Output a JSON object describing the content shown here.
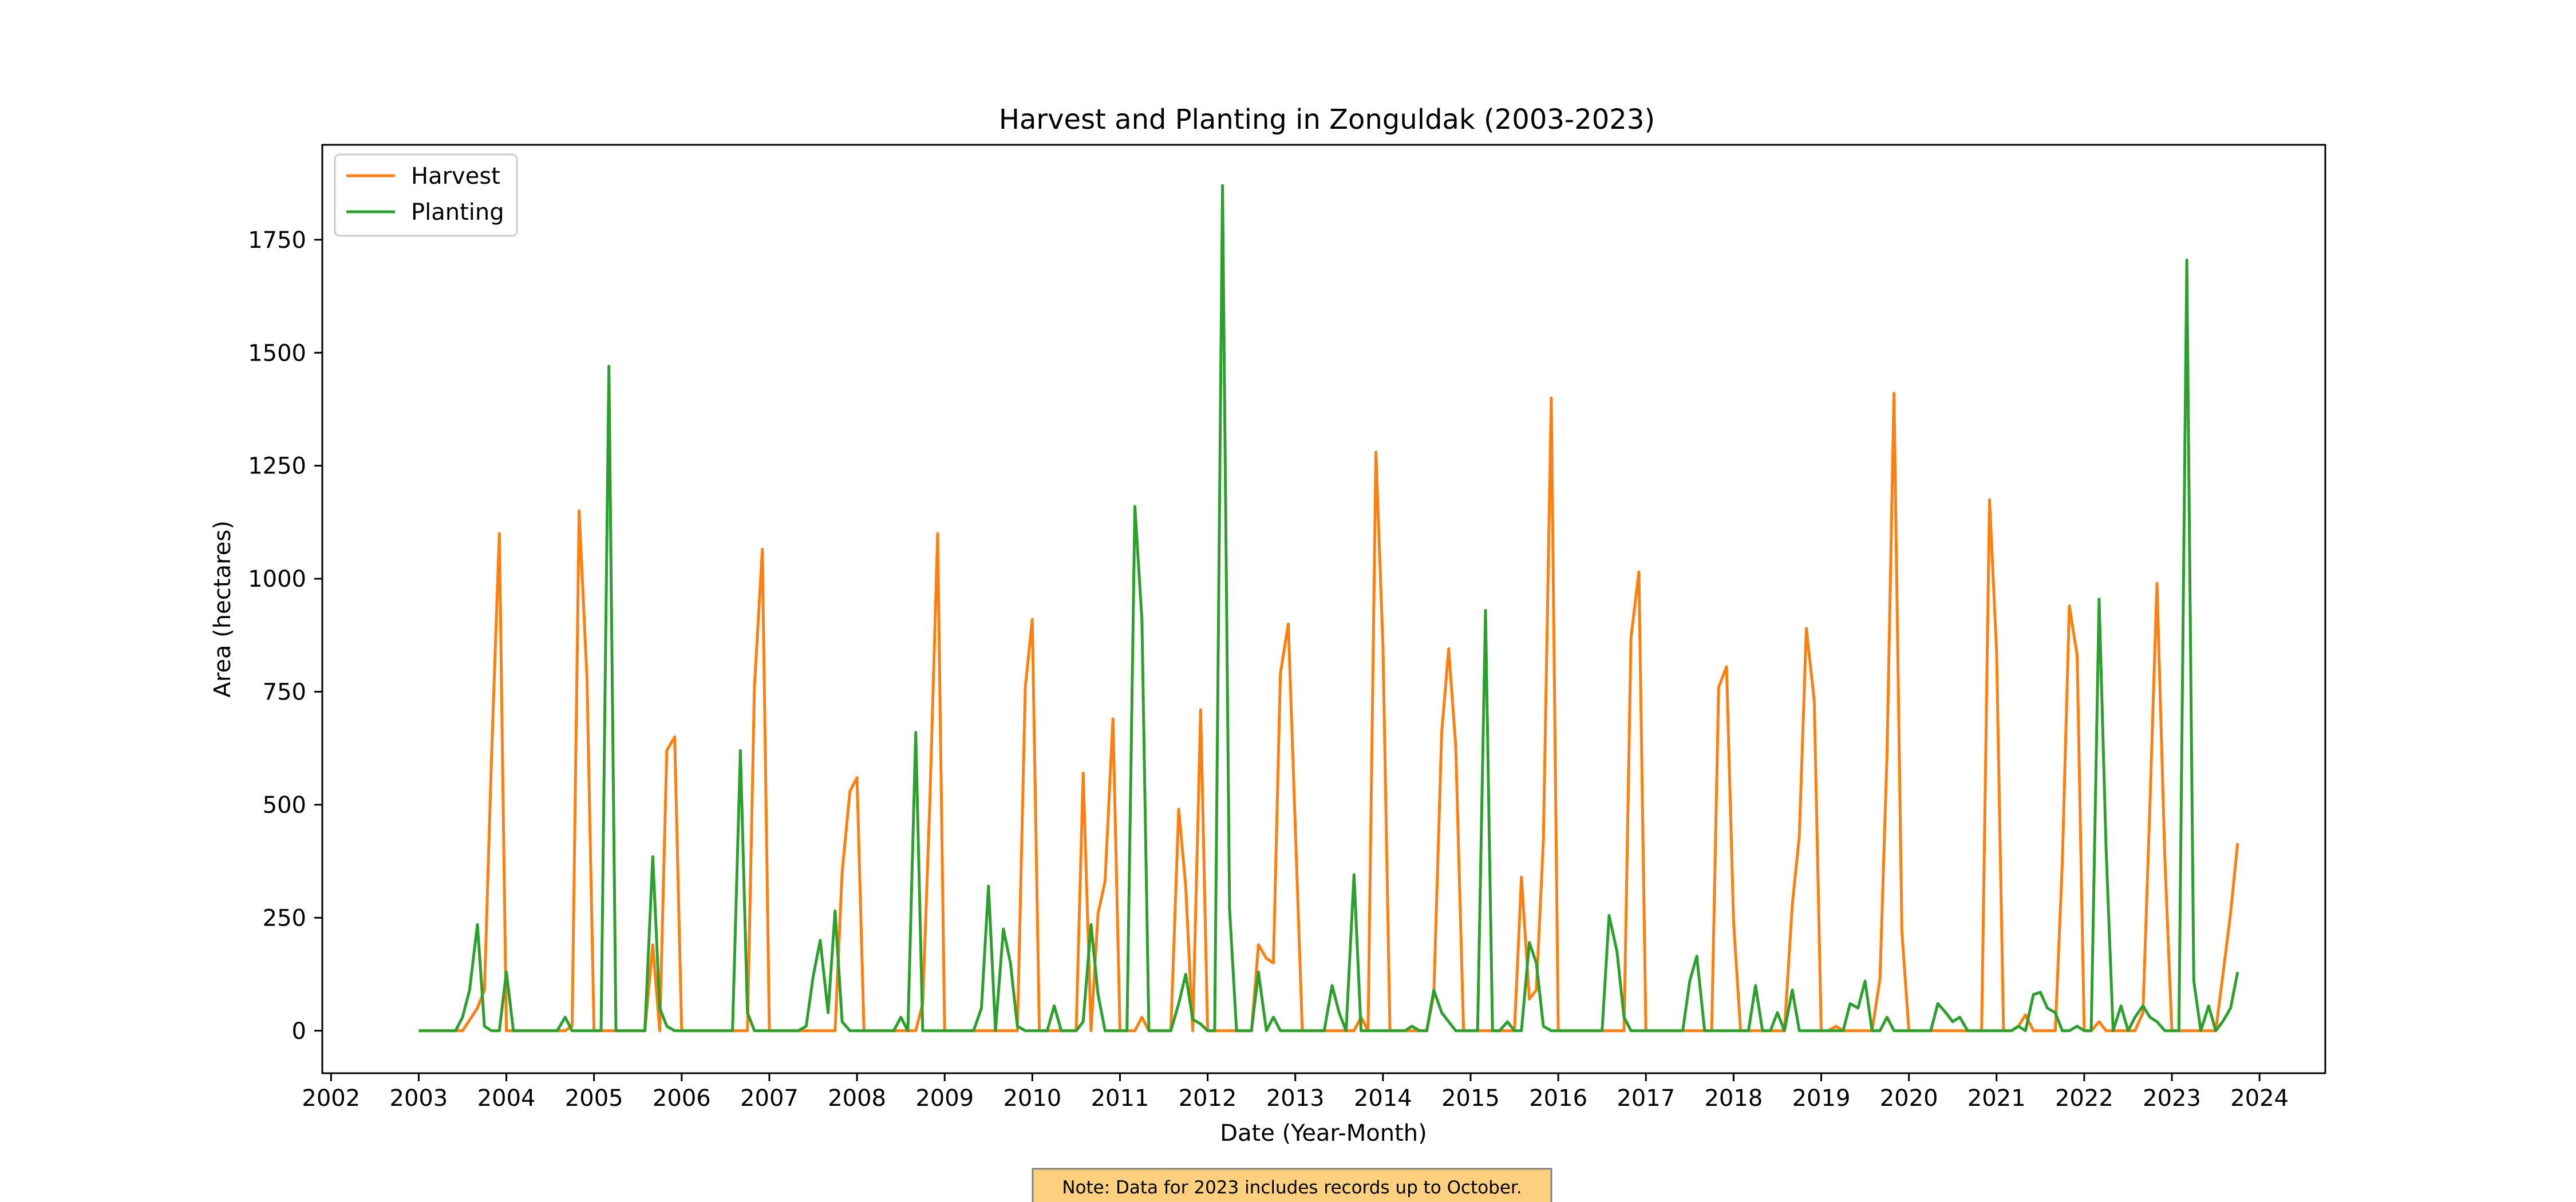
{
  "chart_data": {
    "type": "line",
    "title": "Harvest and Planting in Zonguldak (2003-2023)",
    "xlabel": "Date (Year-Month)",
    "ylabel": "Area (hectares)",
    "xlim": [
      2001.9,
      2024.75
    ],
    "ylim": [
      -94,
      1960
    ],
    "x_ticks": [
      2002,
      2003,
      2004,
      2005,
      2006,
      2007,
      2008,
      2009,
      2010,
      2011,
      2012,
      2013,
      2014,
      2015,
      2016,
      2017,
      2018,
      2019,
      2020,
      2021,
      2022,
      2023,
      2024
    ],
    "y_ticks": [
      0,
      250,
      500,
      750,
      1000,
      1250,
      1500,
      1750
    ],
    "grid": false,
    "legend_position": "upper left",
    "x_axis_type": "date (fractional year)",
    "series": [
      {
        "name": "Harvest",
        "color": "#ff7f0e",
        "points": [
          [
            2003.0,
            0
          ],
          [
            2003.5,
            0
          ],
          [
            2003.67,
            50
          ],
          [
            2003.75,
            90
          ],
          [
            2003.83,
            600
          ],
          [
            2003.92,
            1100
          ],
          [
            2004.0,
            0
          ],
          [
            2004.67,
            0
          ],
          [
            2004.75,
            10
          ],
          [
            2004.83,
            1150
          ],
          [
            2004.92,
            780
          ],
          [
            2005.0,
            0
          ],
          [
            2005.58,
            0
          ],
          [
            2005.67,
            190
          ],
          [
            2005.75,
            0
          ],
          [
            2005.83,
            620
          ],
          [
            2005.92,
            650
          ],
          [
            2006.0,
            0
          ],
          [
            2006.75,
            0
          ],
          [
            2006.83,
            760
          ],
          [
            2006.92,
            1065
          ],
          [
            2007.0,
            0
          ],
          [
            2007.67,
            0
          ],
          [
            2007.75,
            0
          ],
          [
            2007.83,
            350
          ],
          [
            2007.92,
            530
          ],
          [
            2008.0,
            560
          ],
          [
            2008.08,
            0
          ],
          [
            2008.67,
            0
          ],
          [
            2008.75,
            60
          ],
          [
            2008.83,
            500
          ],
          [
            2008.92,
            1100
          ],
          [
            2009.0,
            0
          ],
          [
            2009.83,
            0
          ],
          [
            2009.92,
            760
          ],
          [
            2010.0,
            910
          ],
          [
            2010.08,
            0
          ],
          [
            2010.5,
            0
          ],
          [
            2010.58,
            570
          ],
          [
            2010.67,
            0
          ],
          [
            2010.75,
            260
          ],
          [
            2010.83,
            330
          ],
          [
            2010.92,
            690
          ],
          [
            2011.0,
            0
          ],
          [
            2011.17,
            0
          ],
          [
            2011.25,
            30
          ],
          [
            2011.33,
            0
          ],
          [
            2011.58,
            0
          ],
          [
            2011.67,
            490
          ],
          [
            2011.75,
            320
          ],
          [
            2011.83,
            0
          ],
          [
            2011.92,
            710
          ],
          [
            2012.0,
            0
          ],
          [
            2012.5,
            0
          ],
          [
            2012.58,
            190
          ],
          [
            2012.67,
            160
          ],
          [
            2012.75,
            150
          ],
          [
            2012.83,
            790
          ],
          [
            2012.92,
            900
          ],
          [
            2013.08,
            0
          ],
          [
            2013.58,
            0
          ],
          [
            2013.67,
            0
          ],
          [
            2013.75,
            30
          ],
          [
            2013.83,
            0
          ],
          [
            2013.92,
            1280
          ],
          [
            2014.0,
            850
          ],
          [
            2014.08,
            0
          ],
          [
            2014.5,
            0
          ],
          [
            2014.58,
            80
          ],
          [
            2014.67,
            660
          ],
          [
            2014.75,
            845
          ],
          [
            2014.83,
            630
          ],
          [
            2014.92,
            0
          ],
          [
            2015.5,
            0
          ],
          [
            2015.58,
            340
          ],
          [
            2015.67,
            70
          ],
          [
            2015.75,
            90
          ],
          [
            2015.83,
            420
          ],
          [
            2015.92,
            1400
          ],
          [
            2016.0,
            0
          ],
          [
            2016.75,
            0
          ],
          [
            2016.83,
            870
          ],
          [
            2016.92,
            1015
          ],
          [
            2017.0,
            0
          ],
          [
            2017.67,
            0
          ],
          [
            2017.75,
            0
          ],
          [
            2017.83,
            760
          ],
          [
            2017.92,
            805
          ],
          [
            2018.0,
            240
          ],
          [
            2018.08,
            0
          ],
          [
            2018.58,
            0
          ],
          [
            2018.67,
            280
          ],
          [
            2018.75,
            430
          ],
          [
            2018.83,
            890
          ],
          [
            2018.92,
            730
          ],
          [
            2019.0,
            0
          ],
          [
            2019.08,
            0
          ],
          [
            2019.17,
            10
          ],
          [
            2019.25,
            0
          ],
          [
            2019.58,
            0
          ],
          [
            2019.67,
            115
          ],
          [
            2019.75,
            610
          ],
          [
            2019.83,
            1410
          ],
          [
            2019.92,
            220
          ],
          [
            2020.0,
            0
          ],
          [
            2020.83,
            0
          ],
          [
            2020.92,
            1175
          ],
          [
            2021.0,
            840
          ],
          [
            2021.08,
            0
          ],
          [
            2021.17,
            0
          ],
          [
            2021.25,
            10
          ],
          [
            2021.33,
            35
          ],
          [
            2021.42,
            0
          ],
          [
            2021.58,
            0
          ],
          [
            2021.67,
            0
          ],
          [
            2021.75,
            370
          ],
          [
            2021.83,
            940
          ],
          [
            2021.92,
            830
          ],
          [
            2022.0,
            0
          ],
          [
            2022.08,
            0
          ],
          [
            2022.17,
            20
          ],
          [
            2022.25,
            0
          ],
          [
            2022.58,
            0
          ],
          [
            2022.67,
            40
          ],
          [
            2022.75,
            500
          ],
          [
            2022.83,
            990
          ],
          [
            2022.92,
            380
          ],
          [
            2023.0,
            0
          ],
          [
            2023.5,
            0
          ],
          [
            2023.58,
            120
          ],
          [
            2023.67,
            260
          ],
          [
            2023.75,
            415
          ]
        ]
      },
      {
        "name": "Planting",
        "color": "#2ca02c",
        "points": [
          [
            2003.0,
            0
          ],
          [
            2003.42,
            0
          ],
          [
            2003.5,
            30
          ],
          [
            2003.58,
            90
          ],
          [
            2003.67,
            235
          ],
          [
            2003.75,
            10
          ],
          [
            2003.83,
            0
          ],
          [
            2003.92,
            0
          ],
          [
            2004.0,
            130
          ],
          [
            2004.08,
            0
          ],
          [
            2004.58,
            0
          ],
          [
            2004.67,
            30
          ],
          [
            2004.75,
            0
          ],
          [
            2005.08,
            0
          ],
          [
            2005.17,
            1470
          ],
          [
            2005.25,
            0
          ],
          [
            2005.58,
            0
          ],
          [
            2005.67,
            385
          ],
          [
            2005.75,
            50
          ],
          [
            2005.83,
            10
          ],
          [
            2005.92,
            0
          ],
          [
            2006.58,
            0
          ],
          [
            2006.67,
            620
          ],
          [
            2006.75,
            40
          ],
          [
            2006.83,
            0
          ],
          [
            2007.33,
            0
          ],
          [
            2007.42,
            10
          ],
          [
            2007.5,
            120
          ],
          [
            2007.58,
            200
          ],
          [
            2007.67,
            40
          ],
          [
            2007.75,
            265
          ],
          [
            2007.83,
            20
          ],
          [
            2007.92,
            0
          ],
          [
            2008.42,
            0
          ],
          [
            2008.5,
            30
          ],
          [
            2008.58,
            0
          ],
          [
            2008.67,
            660
          ],
          [
            2008.75,
            0
          ],
          [
            2009.33,
            0
          ],
          [
            2009.42,
            50
          ],
          [
            2009.5,
            320
          ],
          [
            2009.58,
            0
          ],
          [
            2009.67,
            225
          ],
          [
            2009.75,
            150
          ],
          [
            2009.83,
            10
          ],
          [
            2009.92,
            0
          ],
          [
            2010.17,
            0
          ],
          [
            2010.25,
            55
          ],
          [
            2010.33,
            0
          ],
          [
            2010.5,
            0
          ],
          [
            2010.58,
            20
          ],
          [
            2010.67,
            235
          ],
          [
            2010.75,
            80
          ],
          [
            2010.83,
            0
          ],
          [
            2011.0,
            0
          ],
          [
            2011.08,
            0
          ],
          [
            2011.17,
            1160
          ],
          [
            2011.25,
            910
          ],
          [
            2011.33,
            0
          ],
          [
            2011.58,
            0
          ],
          [
            2011.67,
            60
          ],
          [
            2011.75,
            125
          ],
          [
            2011.83,
            25
          ],
          [
            2011.92,
            15
          ],
          [
            2012.0,
            0
          ],
          [
            2012.08,
            0
          ],
          [
            2012.17,
            1870
          ],
          [
            2012.25,
            270
          ],
          [
            2012.33,
            0
          ],
          [
            2012.5,
            0
          ],
          [
            2012.58,
            130
          ],
          [
            2012.67,
            0
          ],
          [
            2012.75,
            30
          ],
          [
            2012.83,
            0
          ],
          [
            2013.33,
            0
          ],
          [
            2013.42,
            100
          ],
          [
            2013.5,
            40
          ],
          [
            2013.58,
            0
          ],
          [
            2013.67,
            345
          ],
          [
            2013.75,
            0
          ],
          [
            2014.25,
            0
          ],
          [
            2014.33,
            10
          ],
          [
            2014.42,
            0
          ],
          [
            2014.5,
            0
          ],
          [
            2014.58,
            90
          ],
          [
            2014.67,
            40
          ],
          [
            2014.75,
            20
          ],
          [
            2014.83,
            0
          ],
          [
            2015.08,
            0
          ],
          [
            2015.17,
            930
          ],
          [
            2015.25,
            0
          ],
          [
            2015.33,
            0
          ],
          [
            2015.42,
            20
          ],
          [
            2015.5,
            0
          ],
          [
            2015.58,
            0
          ],
          [
            2015.67,
            195
          ],
          [
            2015.75,
            150
          ],
          [
            2015.83,
            10
          ],
          [
            2015.92,
            0
          ],
          [
            2016.5,
            0
          ],
          [
            2016.58,
            255
          ],
          [
            2016.67,
            175
          ],
          [
            2016.75,
            30
          ],
          [
            2016.83,
            0
          ],
          [
            2017.42,
            0
          ],
          [
            2017.5,
            110
          ],
          [
            2017.58,
            165
          ],
          [
            2017.67,
            0
          ],
          [
            2017.75,
            0
          ],
          [
            2018.17,
            0
          ],
          [
            2018.25,
            100
          ],
          [
            2018.33,
            0
          ],
          [
            2018.42,
            0
          ],
          [
            2018.5,
            40
          ],
          [
            2018.58,
            0
          ],
          [
            2018.67,
            90
          ],
          [
            2018.75,
            0
          ],
          [
            2019.25,
            0
          ],
          [
            2019.33,
            60
          ],
          [
            2019.42,
            50
          ],
          [
            2019.5,
            110
          ],
          [
            2019.58,
            0
          ],
          [
            2019.67,
            0
          ],
          [
            2019.75,
            30
          ],
          [
            2019.83,
            0
          ],
          [
            2020.25,
            0
          ],
          [
            2020.33,
            60
          ],
          [
            2020.42,
            40
          ],
          [
            2020.5,
            20
          ],
          [
            2020.58,
            30
          ],
          [
            2020.67,
            0
          ],
          [
            2021.08,
            0
          ],
          [
            2021.17,
            0
          ],
          [
            2021.25,
            10
          ],
          [
            2021.33,
            0
          ],
          [
            2021.42,
            80
          ],
          [
            2021.5,
            85
          ],
          [
            2021.58,
            50
          ],
          [
            2021.67,
            40
          ],
          [
            2021.75,
            0
          ],
          [
            2021.83,
            0
          ],
          [
            2021.92,
            10
          ],
          [
            2022.0,
            0
          ],
          [
            2022.08,
            0
          ],
          [
            2022.17,
            955
          ],
          [
            2022.25,
            400
          ],
          [
            2022.33,
            0
          ],
          [
            2022.42,
            55
          ],
          [
            2022.5,
            0
          ],
          [
            2022.58,
            30
          ],
          [
            2022.67,
            55
          ],
          [
            2022.75,
            30
          ],
          [
            2022.83,
            20
          ],
          [
            2022.92,
            0
          ],
          [
            2023.08,
            0
          ],
          [
            2023.17,
            1705
          ],
          [
            2023.25,
            110
          ],
          [
            2023.33,
            0
          ],
          [
            2023.42,
            55
          ],
          [
            2023.5,
            0
          ],
          [
            2023.58,
            20
          ],
          [
            2023.67,
            50
          ],
          [
            2023.75,
            130
          ]
        ]
      }
    ],
    "annotation": "Note: Data for 2023 includes records up to October.",
    "annotation_bg": "#fdd080",
    "annotation_border": "#808080"
  }
}
